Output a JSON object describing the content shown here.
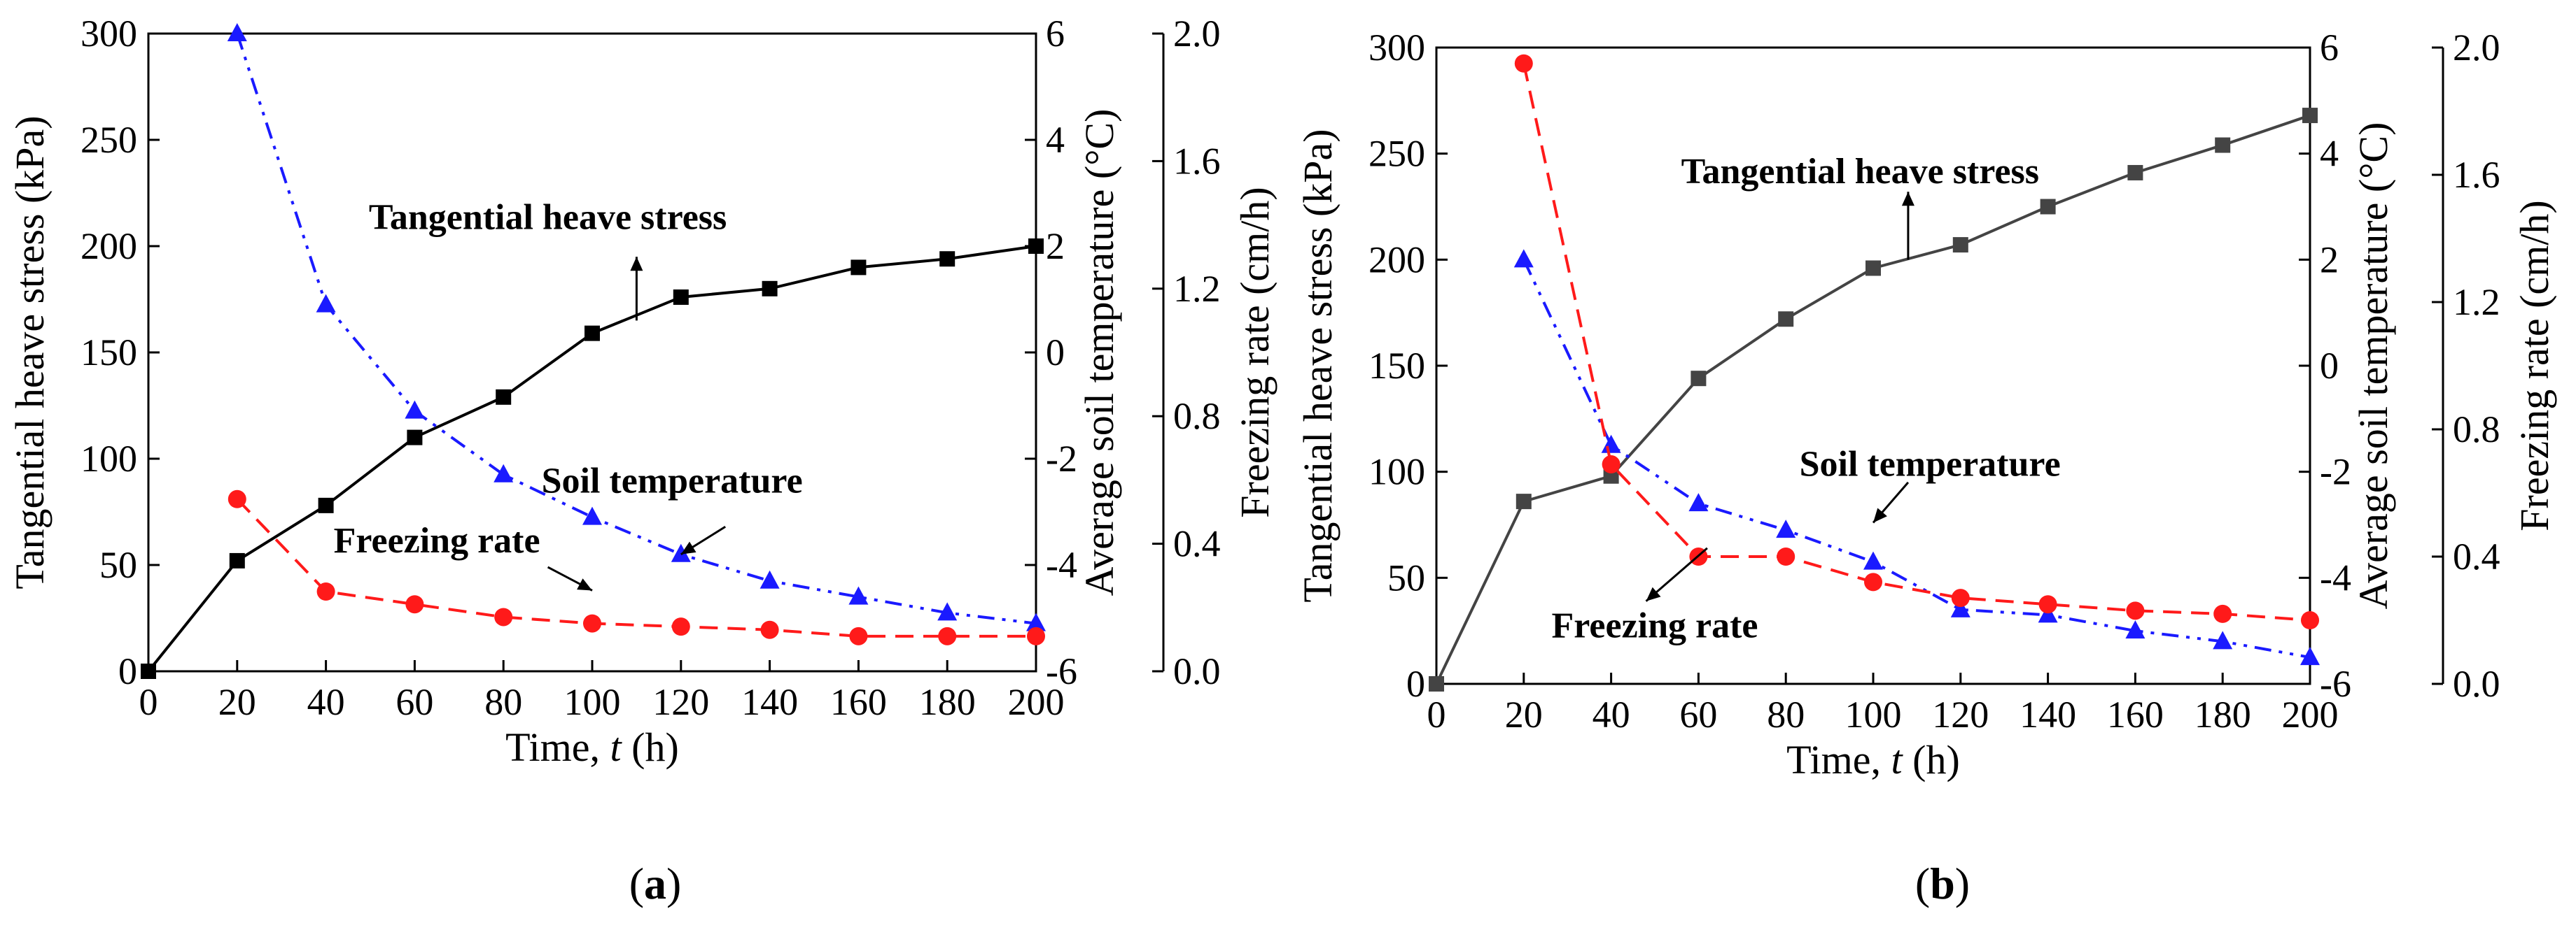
{
  "chart_data": [
    {
      "type": "line",
      "panel_label": {
        "open": "(",
        "letter": "a",
        "close": ")"
      },
      "xlabel": {
        "prefix": "Time, ",
        "var": "t",
        "suffix": " (h)"
      },
      "xlim": [
        0,
        200
      ],
      "xticks": [
        0,
        20,
        40,
        60,
        80,
        100,
        120,
        140,
        160,
        180,
        200
      ],
      "axes": [
        {
          "id": "stress",
          "label": "Tangential heave stress (kPa)",
          "side": "left",
          "ylim": [
            0,
            300
          ],
          "ticks": [
            0,
            50,
            100,
            150,
            200,
            250,
            300
          ]
        },
        {
          "id": "temp",
          "label": "Average soil temperature (°C)",
          "side": "right",
          "ylim": [
            -6,
            6
          ],
          "ticks": [
            -6,
            -4,
            -2,
            0,
            2,
            4,
            6
          ]
        },
        {
          "id": "rate",
          "label": "Freezing rate (cm/h)",
          "side": "right-outer",
          "ylim": [
            0.0,
            2.0
          ],
          "ticks": [
            "0.0",
            "0.4",
            "0.8",
            "1.2",
            "1.6",
            "2.0"
          ]
        }
      ],
      "series": [
        {
          "name": "Tangential heave stress",
          "axis": "stress",
          "color": "#000000",
          "marker": "square",
          "dash": "solid",
          "x": [
            0,
            20,
            40,
            60,
            80,
            100,
            120,
            140,
            160,
            180,
            200
          ],
          "y": [
            0,
            52,
            78,
            110,
            129,
            159,
            176,
            180,
            190,
            194,
            200
          ]
        },
        {
          "name": "Soil temperature",
          "axis": "temp",
          "color": "#1a1aff",
          "marker": "triangle",
          "dash": "dashdotdot",
          "x": [
            20,
            40,
            60,
            80,
            100,
            120,
            140,
            160,
            180,
            200
          ],
          "y": [
            6.0,
            0.9,
            -1.1,
            -2.3,
            -3.1,
            -3.8,
            -4.3,
            -4.6,
            -4.9,
            -5.1
          ]
        },
        {
          "name": "Freezing rate",
          "axis": "rate",
          "color": "#ff1a1a",
          "marker": "circle",
          "dash": "dashed",
          "x": [
            20,
            40,
            60,
            80,
            100,
            120,
            140,
            160,
            180,
            200
          ],
          "y": [
            0.54,
            0.25,
            0.21,
            0.17,
            0.15,
            0.14,
            0.13,
            0.11,
            0.11,
            0.11
          ]
        }
      ],
      "annotations": [
        {
          "text": "Tangential heave stress",
          "tx": 90,
          "ty": 208,
          "ax": 110,
          "ay": 165,
          "hx": 110,
          "hy": 195
        },
        {
          "text": "Soil temperature",
          "tx": 118,
          "ty": 84,
          "ax": 130,
          "ay": 68,
          "hx": 120,
          "hy": 55
        },
        {
          "text": "Freezing rate",
          "tx": 65,
          "ty": 56,
          "ax": 90,
          "ay": 49,
          "hx": 100,
          "hy": 38
        }
      ]
    },
    {
      "type": "line",
      "panel_label": {
        "open": "(",
        "letter": "b",
        "close": ")"
      },
      "xlabel": {
        "prefix": "Time, ",
        "var": "t",
        "suffix": " (h)"
      },
      "xlim": [
        0,
        200
      ],
      "xticks": [
        0,
        20,
        40,
        60,
        80,
        100,
        120,
        140,
        160,
        180,
        200
      ],
      "axes": [
        {
          "id": "stress",
          "label": "Tangential heave stress (kPa)",
          "side": "left",
          "ylim": [
            0,
            300
          ],
          "ticks": [
            0,
            50,
            100,
            150,
            200,
            250,
            300
          ]
        },
        {
          "id": "temp",
          "label": "Average soil temperature (°C)",
          "side": "right",
          "ylim": [
            -6,
            6
          ],
          "ticks": [
            -6,
            -4,
            -2,
            0,
            2,
            4,
            6
          ]
        },
        {
          "id": "rate",
          "label": "Freezing rate (cm/h)",
          "side": "right-outer",
          "ylim": [
            0.0,
            2.0
          ],
          "ticks": [
            "0.0",
            "0.4",
            "0.8",
            "1.2",
            "1.6",
            "2.0"
          ]
        }
      ],
      "series": [
        {
          "name": "Tangential heave stress",
          "axis": "stress",
          "color": "#444444",
          "marker": "square",
          "dash": "solid",
          "x": [
            0,
            20,
            40,
            60,
            80,
            100,
            120,
            140,
            160,
            180,
            200
          ],
          "y": [
            0,
            86,
            98,
            144,
            172,
            196,
            207,
            225,
            241,
            254,
            268
          ]
        },
        {
          "name": "Soil temperature",
          "axis": "temp",
          "color": "#1a1aff",
          "marker": "triangle",
          "dash": "dashdotdot",
          "x": [
            20,
            40,
            60,
            80,
            100,
            120,
            140,
            160,
            180,
            200
          ],
          "y": [
            2.0,
            -1.5,
            -2.6,
            -3.1,
            -3.7,
            -4.6,
            -4.7,
            -5.0,
            -5.2,
            -5.5
          ]
        },
        {
          "name": "Freezing rate",
          "axis": "rate",
          "color": "#ff1a1a",
          "marker": "circle",
          "dash": "dashed",
          "x": [
            20,
            40,
            60,
            80,
            100,
            120,
            140,
            160,
            180,
            200
          ],
          "y": [
            1.95,
            0.69,
            0.4,
            0.4,
            0.32,
            0.27,
            0.25,
            0.23,
            0.22,
            0.2
          ]
        }
      ],
      "annotations": [
        {
          "text": "Tangential heave stress",
          "tx": 97,
          "ty": 236,
          "ax": 108,
          "ay": 200,
          "hx": 108,
          "hy": 232
        },
        {
          "text": "Soil temperature",
          "tx": 113,
          "ty": 98,
          "ax": 108,
          "ay": 95,
          "hx": 100,
          "hy": 76
        },
        {
          "text": "Freezing rate",
          "tx": 50,
          "ty": 22,
          "ax": 62,
          "ay": 64,
          "hx": 48,
          "hy": 39
        }
      ]
    }
  ]
}
